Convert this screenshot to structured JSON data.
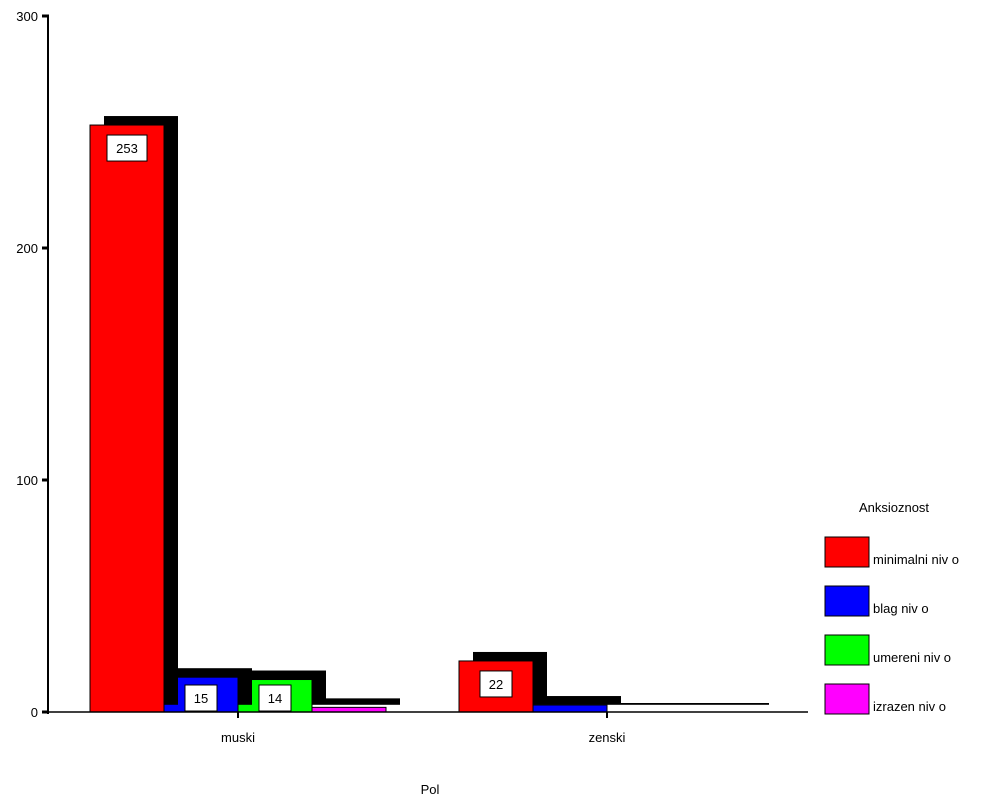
{
  "chart_data": {
    "type": "bar",
    "xlabel": "Pol",
    "ylabel": "",
    "ylim": [
      0,
      300
    ],
    "yticks": [
      0,
      100,
      200,
      300
    ],
    "categories": [
      "muski",
      "zenski"
    ],
    "legend_title": "Anksioznost",
    "legend_position": "right",
    "grid": false,
    "series": [
      {
        "name": "minimalni niv o",
        "color": "#ff0000",
        "values": [
          253,
          22
        ]
      },
      {
        "name": "blag niv o",
        "color": "#0000ff",
        "values": [
          15,
          3
        ]
      },
      {
        "name": "umereni niv o",
        "color": "#00ff00",
        "values": [
          14,
          0
        ]
      },
      {
        "name": "izrazen niv o",
        "color": "#ff00ff",
        "values": [
          2,
          0
        ]
      }
    ],
    "data_labels": [
      {
        "series": 0,
        "category": 0,
        "text": "253"
      },
      {
        "series": 1,
        "category": 0,
        "text": "15"
      },
      {
        "series": 2,
        "category": 0,
        "text": "14"
      },
      {
        "series": 0,
        "category": 1,
        "text": "22"
      }
    ]
  }
}
